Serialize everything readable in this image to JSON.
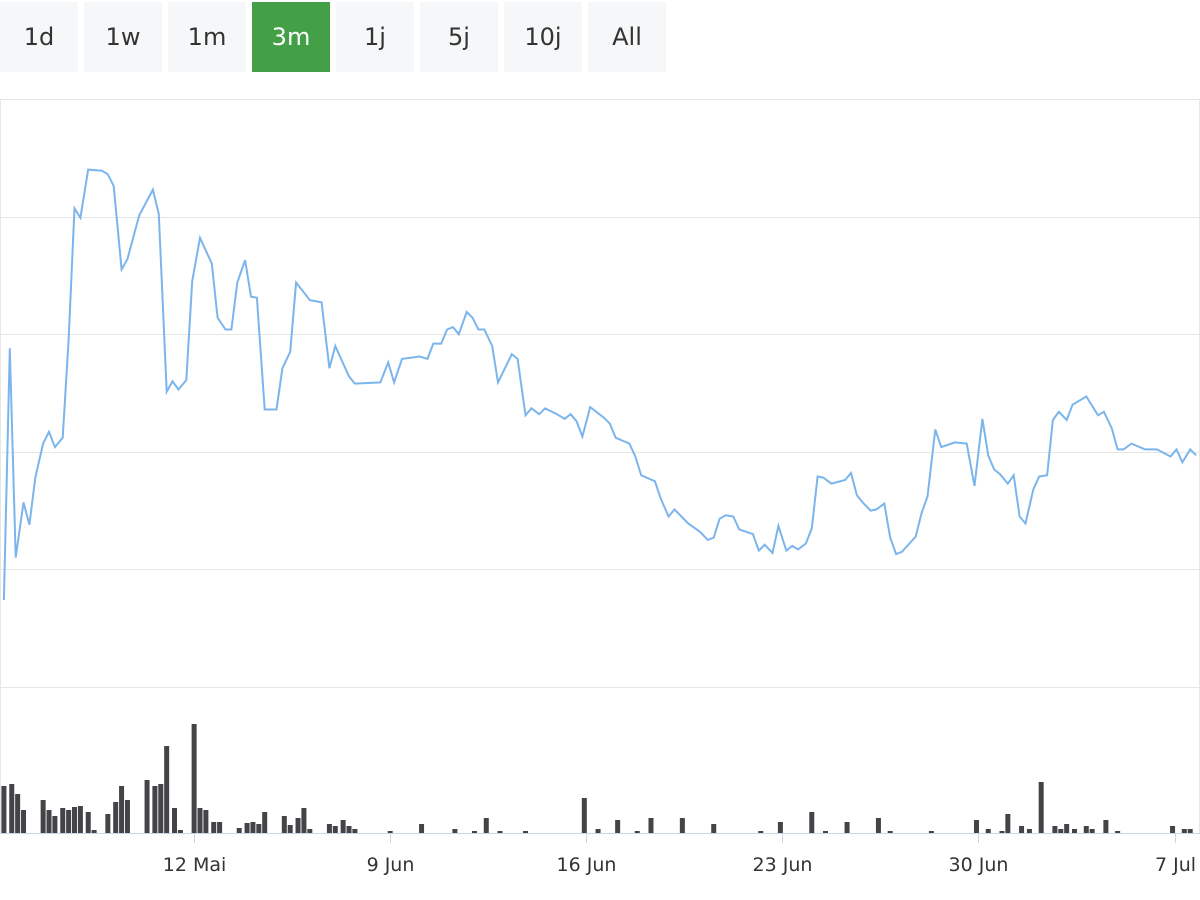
{
  "range_buttons": {
    "labels": [
      "1d",
      "1w",
      "1m",
      "3m",
      "1j",
      "5j",
      "10j",
      "All"
    ],
    "active": 3,
    "active_color": "#43a047",
    "color": "#f6f7f8"
  },
  "chart_data": [
    {
      "type": "line",
      "color": "#7cb5ec",
      "grid": true,
      "xlim": [
        -0.99,
        5.13
      ],
      "ylim": [
        0,
        5
      ],
      "yticks": [
        0,
        1,
        2,
        3,
        4,
        5
      ],
      "x": [
        -0.97,
        -0.94,
        -0.91,
        -0.87,
        -0.84,
        -0.81,
        -0.77,
        -0.74,
        -0.71,
        -0.67,
        -0.64,
        -0.61,
        -0.58,
        -0.54,
        -0.47,
        -0.44,
        -0.41,
        -0.37,
        -0.34,
        -0.28,
        -0.21,
        -0.18,
        -0.14,
        -0.11,
        -0.08,
        -0.04,
        -0.01,
        0.03,
        0.09,
        0.12,
        0.16,
        0.19,
        0.22,
        0.26,
        0.29,
        0.32,
        0.36,
        0.42,
        0.45,
        0.49,
        0.52,
        0.59,
        0.65,
        0.69,
        0.72,
        0.79,
        0.82,
        0.95,
        0.99,
        1.02,
        1.06,
        1.15,
        1.19,
        1.22,
        1.26,
        1.29,
        1.32,
        1.35,
        1.39,
        1.42,
        1.45,
        1.48,
        1.52,
        1.55,
        1.62,
        1.65,
        1.69,
        1.72,
        1.76,
        1.79,
        1.85,
        1.89,
        1.92,
        1.95,
        1.98,
        2.02,
        2.09,
        2.12,
        2.15,
        2.22,
        2.25,
        2.28,
        2.35,
        2.38,
        2.42,
        2.45,
        2.52,
        2.58,
        2.62,
        2.65,
        2.68,
        2.71,
        2.75,
        2.78,
        2.85,
        2.88,
        2.91,
        2.95,
        2.98,
        3.02,
        3.05,
        3.08,
        3.12,
        3.15,
        3.18,
        3.21,
        3.25,
        3.32,
        3.35,
        3.38,
        3.41,
        3.45,
        3.48,
        3.52,
        3.55,
        3.58,
        3.61,
        3.68,
        3.71,
        3.74,
        3.78,
        3.81,
        3.88,
        3.94,
        3.98,
        4.02,
        4.05,
        4.08,
        4.11,
        4.15,
        4.18,
        4.21,
        4.24,
        4.28,
        4.31,
        4.35,
        4.38,
        4.41,
        4.45,
        4.48,
        4.55,
        4.61,
        4.64,
        4.68,
        4.71,
        4.74,
        4.78,
        4.85,
        4.91,
        4.98,
        5.01,
        5.04,
        5.08,
        5.11
      ],
      "values": [
        0.74,
        2.88,
        1.1,
        1.57,
        1.38,
        1.78,
        2.07,
        2.17,
        2.04,
        2.12,
        2.95,
        4.07,
        3.99,
        4.4,
        4.39,
        4.36,
        4.26,
        3.55,
        3.64,
        4.01,
        4.23,
        4.02,
        2.51,
        2.6,
        2.53,
        2.61,
        3.45,
        3.82,
        3.6,
        3.14,
        3.04,
        3.04,
        3.44,
        3.63,
        3.32,
        3.31,
        2.36,
        2.36,
        2.71,
        2.85,
        3.44,
        3.29,
        3.27,
        2.71,
        2.9,
        2.64,
        2.58,
        2.59,
        2.76,
        2.59,
        2.79,
        2.81,
        2.79,
        2.92,
        2.92,
        3.04,
        3.06,
        3.0,
        3.19,
        3.14,
        3.04,
        3.04,
        2.9,
        2.59,
        2.83,
        2.79,
        2.31,
        2.37,
        2.32,
        2.37,
        2.32,
        2.28,
        2.32,
        2.26,
        2.13,
        2.38,
        2.29,
        2.24,
        2.12,
        2.07,
        1.96,
        1.8,
        1.75,
        1.6,
        1.45,
        1.51,
        1.39,
        1.32,
        1.25,
        1.27,
        1.43,
        1.46,
        1.45,
        1.34,
        1.3,
        1.16,
        1.21,
        1.14,
        1.37,
        1.16,
        1.2,
        1.17,
        1.22,
        1.35,
        1.79,
        1.78,
        1.73,
        1.76,
        1.82,
        1.63,
        1.57,
        1.5,
        1.51,
        1.56,
        1.27,
        1.13,
        1.15,
        1.28,
        1.48,
        1.62,
        2.19,
        2.04,
        2.08,
        2.07,
        1.71,
        2.28,
        1.97,
        1.85,
        1.81,
        1.73,
        1.8,
        1.45,
        1.39,
        1.68,
        1.79,
        1.8,
        2.27,
        2.34,
        2.27,
        2.4,
        2.47,
        2.31,
        2.34,
        2.2,
        2.02,
        2.02,
        2.07,
        2.02,
        2.02,
        1.96,
        2.02,
        1.91,
        2.02,
        1.97
      ]
    },
    {
      "type": "bar",
      "color": "#434348",
      "xlim": [
        -0.99,
        5.13
      ],
      "ylim": [
        0,
        110
      ],
      "xticks": [
        {
          "value": 0,
          "label": "12 Mai"
        },
        {
          "value": 1,
          "label": "9 Jun"
        },
        {
          "value": 2,
          "label": "16 Jun"
        },
        {
          "value": 3,
          "label": "23 Jun"
        },
        {
          "value": 4,
          "label": "30 Jun"
        },
        {
          "value": 5,
          "label": "7 Jul"
        }
      ],
      "x": [
        -0.97,
        -0.93,
        -0.9,
        -0.87,
        -0.77,
        -0.74,
        -0.71,
        -0.67,
        -0.64,
        -0.61,
        -0.58,
        -0.54,
        -0.51,
        -0.44,
        -0.4,
        -0.37,
        -0.34,
        -0.24,
        -0.2,
        -0.17,
        -0.14,
        -0.1,
        -0.07,
        0,
        0.03,
        0.06,
        0.1,
        0.13,
        0.23,
        0.27,
        0.3,
        0.33,
        0.36,
        0.46,
        0.49,
        0.53,
        0.56,
        0.59,
        0.69,
        0.72,
        0.76,
        0.79,
        0.82,
        1.0,
        1.16,
        1.33,
        1.43,
        1.49,
        1.56,
        1.69,
        1.99,
        2.06,
        2.16,
        2.26,
        2.33,
        2.49,
        2.65,
        2.89,
        2.99,
        3.15,
        3.22,
        3.33,
        3.49,
        3.55,
        3.76,
        3.99,
        4.05,
        4.12,
        4.15,
        4.22,
        4.26,
        4.32,
        4.39,
        4.42,
        4.45,
        4.49,
        4.55,
        4.58,
        4.65,
        4.71,
        4.99,
        5.05,
        5.08
      ],
      "values": [
        47,
        49,
        39,
        23,
        33,
        23,
        17,
        25,
        23,
        26,
        27,
        21,
        3,
        19,
        31,
        47,
        33,
        53,
        47,
        49,
        87,
        25,
        3,
        109,
        25,
        23,
        11,
        11,
        5,
        10,
        11,
        9,
        21,
        17,
        8,
        15,
        25,
        4,
        9,
        7,
        13,
        7,
        4,
        2,
        9,
        4,
        2,
        15,
        2,
        2,
        35,
        4,
        13,
        2,
        15,
        15,
        9,
        2,
        11,
        21,
        2,
        11,
        15,
        2,
        2,
        13,
        4,
        2,
        19,
        7,
        4,
        51,
        7,
        4,
        9,
        4,
        7,
        4,
        13,
        2,
        7,
        4,
        4
      ]
    }
  ]
}
